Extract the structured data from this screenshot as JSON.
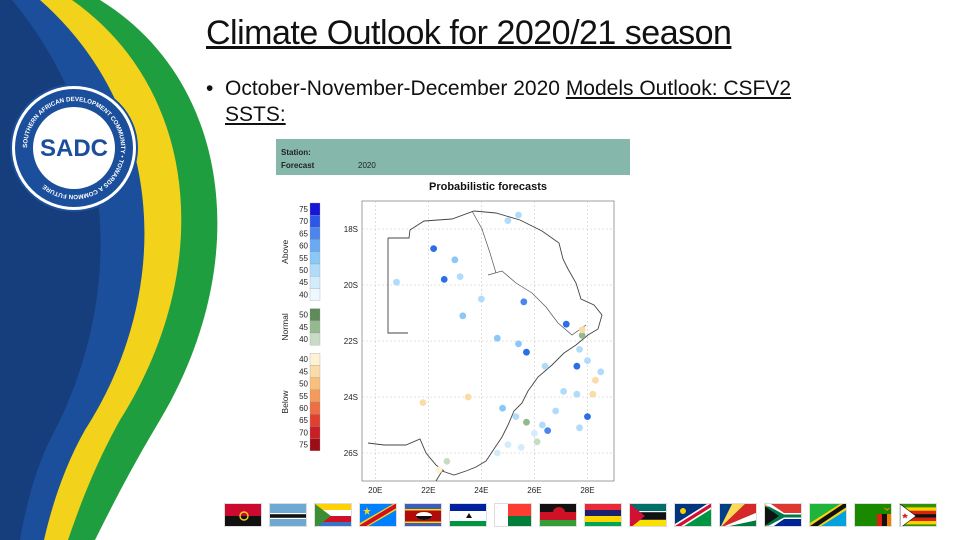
{
  "slide": {
    "title": "Climate Outlook for 2020/21 season",
    "bullet": {
      "text_plain": "October-November-December 2020 ",
      "text_underlined": "Models Outlook: CSFV2 SSTS:"
    }
  },
  "logo": {
    "center_text": "SADC",
    "ring_text": "SOUTHERN AFRICAN DEVELOPMENT COMMUNITY • TOWARDS A COMMON FUTURE"
  },
  "forecast_panel": {
    "station_label": "Station:",
    "forecast_label": "Forecast",
    "forecast_value": "2020",
    "map_title": "Probabilistic forecasts",
    "legend": {
      "groups": [
        {
          "name": "Above",
          "ticks": [
            "75",
            "70",
            "65",
            "60",
            "55",
            "50",
            "45",
            "40"
          ],
          "colors": [
            "#1616d6",
            "#2d57e6",
            "#4a86ee",
            "#6aaaf3",
            "#8cc8f7",
            "#b0dcfa",
            "#d3ecfc",
            "#eef8ff"
          ]
        },
        {
          "name": "Normal",
          "ticks": [
            "50",
            "45",
            "40"
          ],
          "colors": [
            "#5d8c5a",
            "#94b98f",
            "#c8dcc4"
          ]
        },
        {
          "name": "Below",
          "ticks": [
            "40",
            "45",
            "50",
            "55",
            "60",
            "65",
            "70",
            "75"
          ],
          "colors": [
            "#fdf1d6",
            "#fbdca9",
            "#f8c07c",
            "#f49b5b",
            "#ee6e44",
            "#e0402f",
            "#c81e24",
            "#9e0c17"
          ]
        }
      ]
    },
    "y_ticks": [
      "18S",
      "20S",
      "22S",
      "24S",
      "26S"
    ],
    "x_ticks": [
      "20E",
      "22E",
      "24E",
      "26E",
      "28E"
    ],
    "stations": [
      {
        "lon": 22.2,
        "lat": -18.7,
        "c": "#2d6de6"
      },
      {
        "lon": 23.0,
        "lat": -19.1,
        "c": "#8cc8f7"
      },
      {
        "lon": 22.6,
        "lat": -19.8,
        "c": "#2d6de6"
      },
      {
        "lon": 20.8,
        "lat": -19.9,
        "c": "#b0dcfa"
      },
      {
        "lon": 23.2,
        "lat": -19.7,
        "c": "#b0dcfa"
      },
      {
        "lon": 24.0,
        "lat": -20.5,
        "c": "#b0dcfa"
      },
      {
        "lon": 23.3,
        "lat": -21.1,
        "c": "#8cc8f7"
      },
      {
        "lon": 25.0,
        "lat": -17.7,
        "c": "#b0dcfa"
      },
      {
        "lon": 25.4,
        "lat": -17.5,
        "c": "#b0dcfa"
      },
      {
        "lon": 25.6,
        "lat": -20.6,
        "c": "#4a86ee"
      },
      {
        "lon": 24.6,
        "lat": -21.9,
        "c": "#8cc8f7"
      },
      {
        "lon": 25.4,
        "lat": -22.1,
        "c": "#8cc8f7"
      },
      {
        "lon": 25.7,
        "lat": -22.4,
        "c": "#2d6de6"
      },
      {
        "lon": 26.4,
        "lat": -22.9,
        "c": "#b0dcfa"
      },
      {
        "lon": 27.2,
        "lat": -21.4,
        "c": "#2d6de6"
      },
      {
        "lon": 27.8,
        "lat": -21.8,
        "c": "#94b98f"
      },
      {
        "lon": 27.8,
        "lat": -21.6,
        "c": "#fbdca9"
      },
      {
        "lon": 27.7,
        "lat": -22.3,
        "c": "#b0dcfa"
      },
      {
        "lon": 27.6,
        "lat": -22.9,
        "c": "#2d6de6"
      },
      {
        "lon": 28.0,
        "lat": -22.7,
        "c": "#b0dcfa"
      },
      {
        "lon": 28.5,
        "lat": -23.1,
        "c": "#b0dcfa"
      },
      {
        "lon": 27.1,
        "lat": -23.8,
        "c": "#b0dcfa"
      },
      {
        "lon": 27.6,
        "lat": -23.9,
        "c": "#b0dcfa"
      },
      {
        "lon": 28.2,
        "lat": -23.9,
        "c": "#fbdca9"
      },
      {
        "lon": 28.3,
        "lat": -23.4,
        "c": "#fbdca9"
      },
      {
        "lon": 28.0,
        "lat": -24.7,
        "c": "#2d6de6"
      },
      {
        "lon": 27.7,
        "lat": -25.1,
        "c": "#b0dcfa"
      },
      {
        "lon": 26.8,
        "lat": -24.5,
        "c": "#b0dcfa"
      },
      {
        "lon": 26.3,
        "lat": -25.0,
        "c": "#b0dcfa"
      },
      {
        "lon": 26.5,
        "lat": -25.2,
        "c": "#4a86ee"
      },
      {
        "lon": 25.3,
        "lat": -24.7,
        "c": "#b0dcfa"
      },
      {
        "lon": 24.8,
        "lat": -24.4,
        "c": "#8cc8f7"
      },
      {
        "lon": 25.5,
        "lat": -25.8,
        "c": "#d3ecfc"
      },
      {
        "lon": 25.7,
        "lat": -24.9,
        "c": "#94b98f"
      },
      {
        "lon": 26.0,
        "lat": -25.3,
        "c": "#d3ecfc"
      },
      {
        "lon": 26.1,
        "lat": -25.6,
        "c": "#c8dcc4"
      },
      {
        "lon": 21.8,
        "lat": -24.2,
        "c": "#fbdca9"
      },
      {
        "lon": 23.5,
        "lat": -24.0,
        "c": "#fbdca9"
      },
      {
        "lon": 25.0,
        "lat": -25.7,
        "c": "#d3ecfc"
      },
      {
        "lon": 22.7,
        "lat": -26.3,
        "c": "#c8dcc4"
      },
      {
        "lon": 22.4,
        "lat": -26.6,
        "c": "#fdf1d6"
      },
      {
        "lon": 24.6,
        "lat": -26.0,
        "c": "#d3ecfc"
      }
    ]
  },
  "flags": [
    "angola",
    "botswana",
    "comoros",
    "dr-congo",
    "eswatini",
    "lesotho",
    "madagascar",
    "malawi",
    "mauritius",
    "mozambique",
    "namibia",
    "seychelles",
    "south-africa",
    "tanzania",
    "zambia",
    "zimbabwe"
  ]
}
